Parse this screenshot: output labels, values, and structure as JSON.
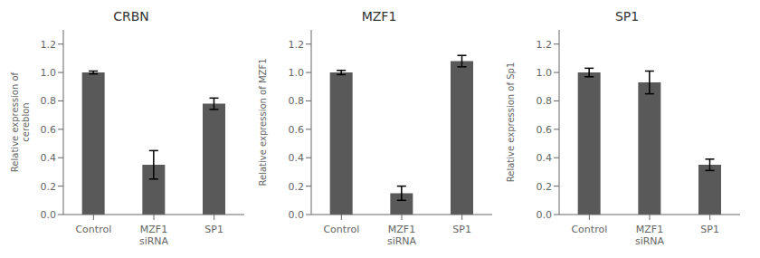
{
  "chart_data": [
    {
      "type": "bar",
      "title": "CRBN",
      "ylabel": "Relative expression of\ncereblon",
      "categories": [
        "Control",
        "MZF1\nsiRNA",
        "SP1"
      ],
      "values": [
        1.0,
        0.35,
        0.78
      ],
      "errors": [
        0.01,
        0.1,
        0.04
      ],
      "color": "#595959",
      "grid": false,
      "ylim": [
        0,
        1.3
      ],
      "yticks": [
        {
          "value": 0,
          "label": "0.0"
        },
        0.2,
        0.4,
        0.6,
        0.8,
        {
          "value": 1.0,
          "label": "1.0"
        },
        1.2
      ]
    },
    {
      "type": "bar",
      "title": "MZF1",
      "ylabel": "Relative expression of MZF1",
      "categories": [
        "Control",
        "MZF1\nsiRNA",
        "SP1"
      ],
      "values": [
        1.0,
        0.15,
        1.08
      ],
      "errors": [
        0.015,
        0.05,
        0.04
      ],
      "color": "#595959",
      "grid": false,
      "ylim": [
        0,
        1.3
      ],
      "yticks": [
        {
          "value": 0,
          "label": "0.0"
        },
        0.2,
        0.4,
        0.6,
        0.8,
        {
          "value": 1.0,
          "label": "1.0"
        },
        1.2
      ]
    },
    {
      "type": "bar",
      "title": "SP1",
      "ylabel": "Relative expression of Sp1",
      "categories": [
        "Control",
        "MZF1\nsiRNA",
        "SP1"
      ],
      "values": [
        1.0,
        0.93,
        0.35
      ],
      "errors": [
        0.03,
        0.08,
        0.04
      ],
      "color": "#595959",
      "grid": false,
      "ylim": [
        0,
        1.3
      ],
      "yticks": [
        {
          "value": 0,
          "label": "0.0"
        },
        0.2,
        0.4,
        0.6,
        0.8,
        {
          "value": 1.0,
          "label": "1.0"
        },
        1.2
      ]
    }
  ]
}
